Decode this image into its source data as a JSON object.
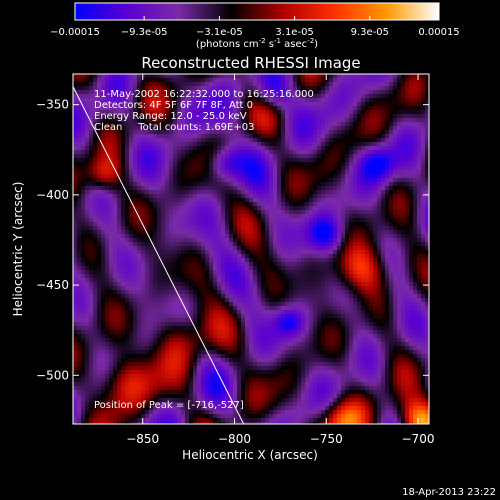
{
  "colorbar": {
    "tick_labels": [
      "-0.00015",
      "-9.3e-05",
      "-3.1e-05",
      "3.1e-05",
      "9.3e-05",
      "0.00015"
    ],
    "tick_values": [
      -0.00015,
      -9.3e-05,
      -3.1e-05,
      3.1e-05,
      9.3e-05,
      0.00015
    ],
    "range": [
      -0.00015,
      0.00015
    ],
    "unit_label_parts": [
      "(photons cm",
      "-2",
      " s",
      "-1",
      " asec",
      "-2",
      ")"
    ],
    "colors": [
      "#0000ff",
      "#5a00d0",
      "#7a2aa8",
      "#000000",
      "#b00000",
      "#ff3000",
      "#ff9a00",
      "#ffffff"
    ]
  },
  "chart_data": {
    "type": "heatmap",
    "title": "Reconstructed RHESSI Image",
    "xlabel": "Heliocentric X (arcsec)",
    "ylabel": "Heliocentric Y (arcsec)",
    "xlim": [
      -888,
      -694
    ],
    "ylim": [
      -527,
      -333
    ],
    "x_ticks": [
      -850,
      -800,
      -750,
      -700
    ],
    "y_ticks": [
      -350,
      -400,
      -450,
      -500
    ],
    "x_tick_labels": [
      "−850",
      "−800",
      "−750",
      "−700"
    ],
    "y_tick_labels": [
      "−350",
      "−400",
      "−450",
      "−500"
    ],
    "limb_line": [
      [
        -888,
        -340
      ],
      [
        -795,
        -527
      ]
    ],
    "peak": [
      -716,
      -527
    ],
    "annotations": [
      "11-May-2002 16:22:32.000 to 16:25:16.000",
      "Detectors: 4F 5F 6F 7F 8F, Att 0",
      "Energy Range: 12.0 - 25.0 keV",
      "Clean     Total counts: 1.69E+03"
    ],
    "peak_label": "Position of Peak = [-716,-527]"
  },
  "footer": {
    "timestamp": "18-Apr-2013 23:22"
  }
}
